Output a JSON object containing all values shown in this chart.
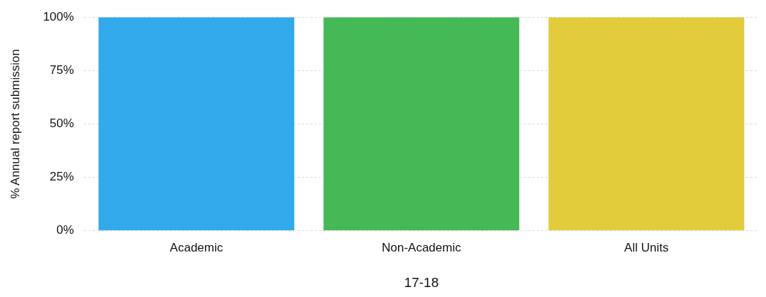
{
  "chart_data": {
    "type": "bar",
    "xlabel": "17-18",
    "ylabel": "% Annual report submission",
    "categories": [
      "Academic",
      "Non-Academic",
      "All Units"
    ],
    "values": [
      100,
      100,
      100
    ],
    "colors": [
      "#31a9ea",
      "#44b956",
      "#e2cc3b"
    ],
    "ylim": [
      0,
      100
    ],
    "yticks": [
      {
        "value": 0,
        "label": "0%"
      },
      {
        "value": 25,
        "label": "25%"
      },
      {
        "value": 50,
        "label": "50%"
      },
      {
        "value": 75,
        "label": "75%"
      },
      {
        "value": 100,
        "label": "100%"
      }
    ],
    "grid": "y",
    "legend": false
  }
}
